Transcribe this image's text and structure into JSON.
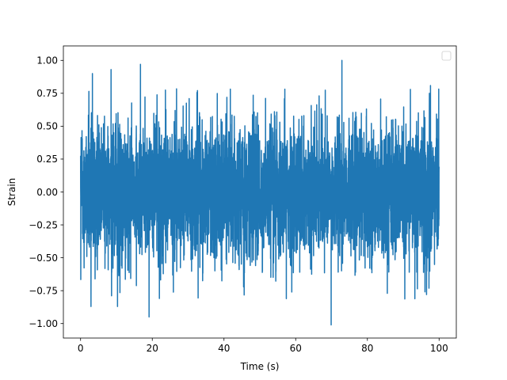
{
  "chart_data": {
    "type": "line",
    "title": "",
    "xlabel": "Time (s)",
    "ylabel": "Strain",
    "xlim": [
      -4.8,
      104.8
    ],
    "ylim": [
      -1.11,
      1.11
    ],
    "xticks": [
      0,
      20,
      40,
      60,
      80,
      100
    ],
    "xtick_labels": [
      "0",
      "20",
      "40",
      "60",
      "80",
      "100"
    ],
    "yticks": [
      -1.0,
      -0.75,
      -0.5,
      -0.25,
      0.0,
      0.25,
      0.5,
      0.75,
      1.0
    ],
    "ytick_labels": [
      "−1.00",
      "−0.75",
      "−0.50",
      "−0.25",
      "0.00",
      "0.25",
      "0.50",
      "0.75",
      "1.00"
    ],
    "grid": false,
    "legend": {
      "placement": "top-right",
      "entries": []
    },
    "series": [
      {
        "color": "#1f77b4",
        "sample_points": 5000,
        "x_range": [
          0,
          100
        ],
        "y_min": -1.0,
        "y_max": 1.0,
        "peaks": [
          {
            "x": 2.9,
            "y": -0.87
          },
          {
            "x": 3.3,
            "y": 0.9
          },
          {
            "x": 8.5,
            "y": 0.93
          },
          {
            "x": 10.3,
            "y": -0.87
          },
          {
            "x": 16.7,
            "y": 0.97
          },
          {
            "x": 19.1,
            "y": -0.95
          },
          {
            "x": 72.9,
            "y": 1.0
          },
          {
            "x": 69.9,
            "y": -1.01
          },
          {
            "x": 96.5,
            "y": -0.78
          },
          {
            "x": 97.3,
            "y": 0.75
          }
        ]
      }
    ]
  }
}
